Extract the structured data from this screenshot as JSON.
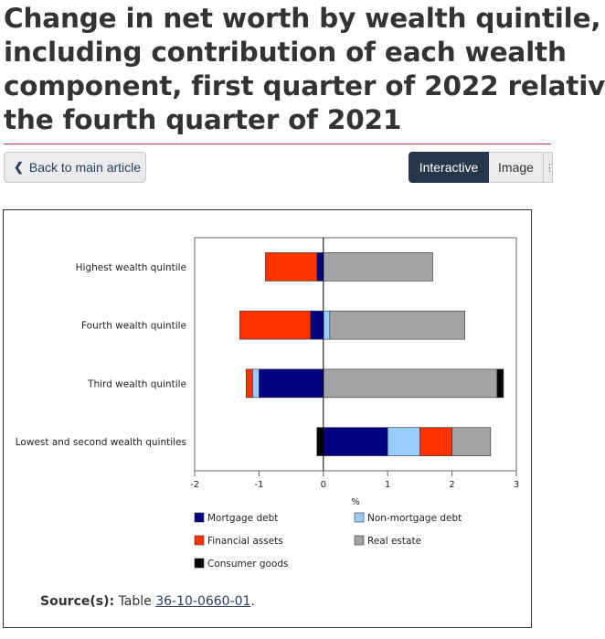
{
  "page": {
    "title_lines": [
      "Change in net worth by wealth quintile,",
      "including contribution of each wealth",
      "component, first quarter of 2022 relativ",
      "the fourth quarter of 2021"
    ],
    "back_button": "Back to main article",
    "tabs": [
      "Interactive",
      "Image"
    ]
  },
  "source": {
    "label": "Source(s):",
    "text": "Table",
    "link": "36-10-0660-01",
    "end": "."
  },
  "colors": {
    "Mortgage debt": "#000080",
    "Non-mortgage debt": "#99ccff",
    "Financial assets": "#ff3300",
    "Real estate": "#a3a3a3",
    "Consumer goods": "#000000"
  },
  "chart_data": {
    "type": "bar",
    "orientation": "horizontal",
    "stacked": true,
    "categories": [
      "Highest wealth quintile",
      "Fourth wealth quintile",
      "Third wealth quintile",
      "Lowest and second wealth quintiles"
    ],
    "series": [
      {
        "name": "Mortgage debt",
        "values": [
          -0.1,
          -0.2,
          -1.0,
          1.0
        ]
      },
      {
        "name": "Non-mortgage debt",
        "values": [
          0.0,
          0.1,
          -0.1,
          0.5
        ]
      },
      {
        "name": "Financial assets",
        "values": [
          -0.8,
          -1.1,
          -0.1,
          0.5
        ]
      },
      {
        "name": "Real estate",
        "values": [
          1.7,
          2.1,
          2.7,
          0.6
        ]
      },
      {
        "name": "Consumer goods",
        "values": [
          0.0,
          0.0,
          0.1,
          -0.1
        ]
      }
    ],
    "xlabel": "%",
    "ylabel": "",
    "xlim": [
      -2,
      3
    ],
    "xticks": [
      -2,
      -1,
      0,
      1,
      2,
      3
    ],
    "grid": false,
    "legend": [
      "Mortgage debt",
      "Non-mortgage debt",
      "Financial assets",
      "Real estate",
      "Consumer goods"
    ],
    "legend_position": "bottom"
  }
}
